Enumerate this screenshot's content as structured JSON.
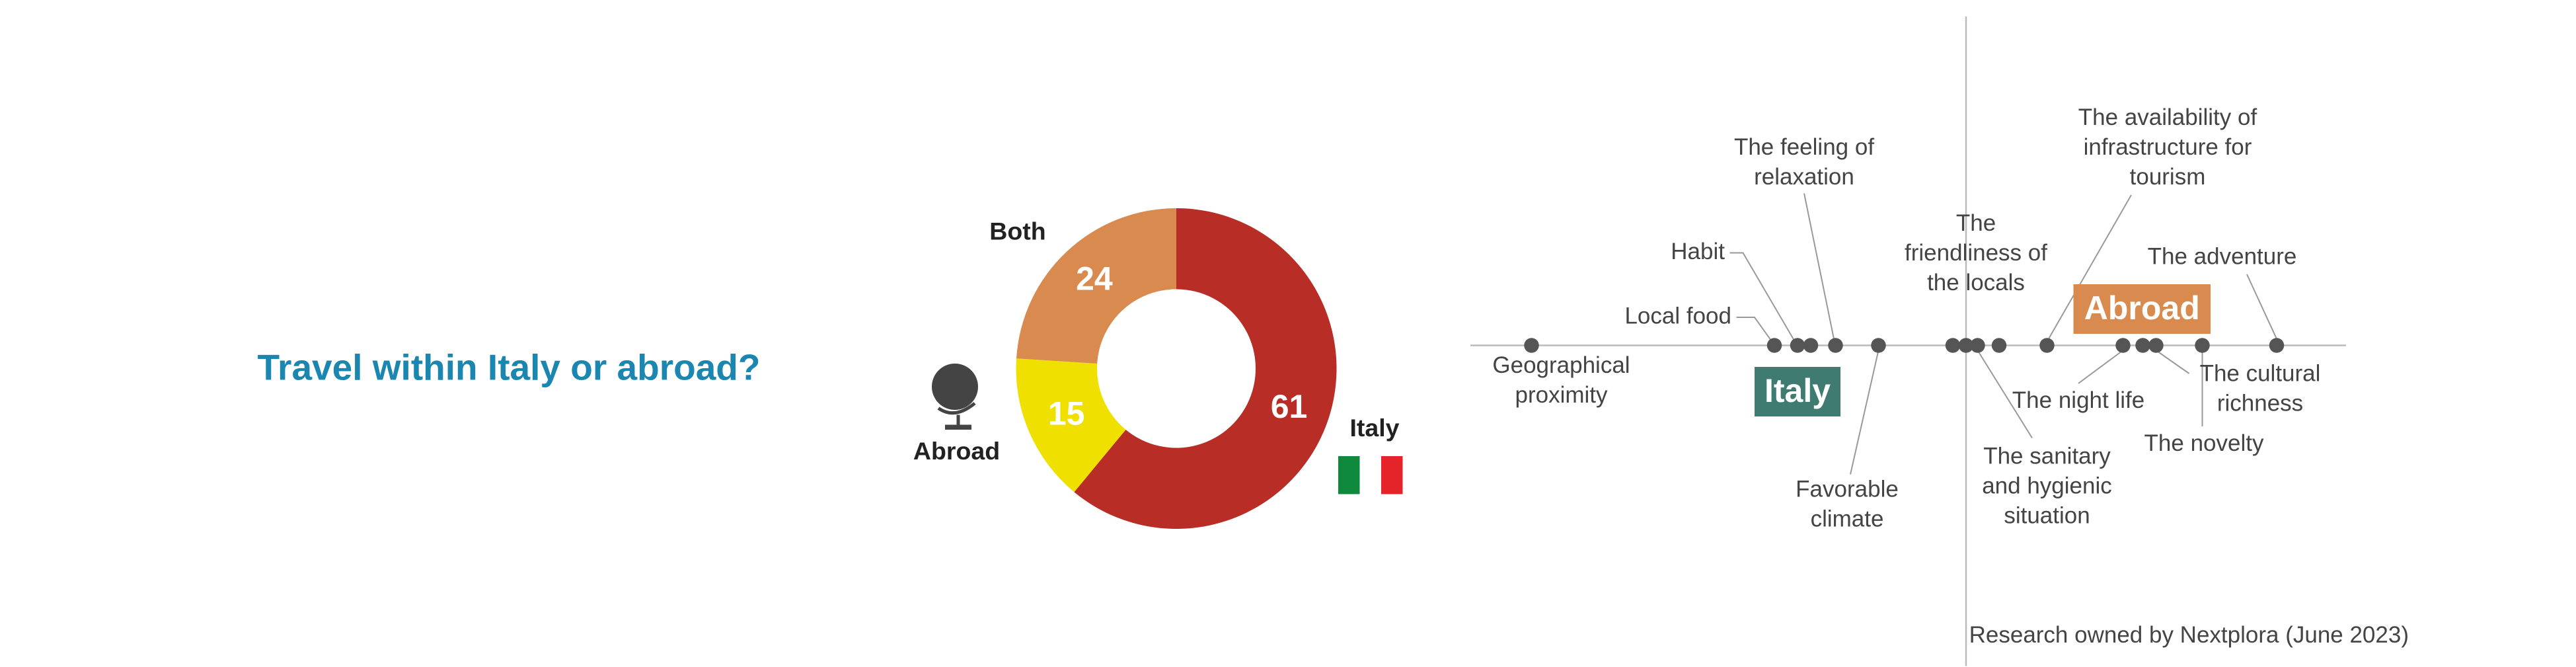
{
  "chart_data": [
    {
      "type": "donut",
      "title": "Travel within Italy or abroad?",
      "categories": [
        "Italy",
        "Abroad",
        "Both"
      ],
      "values": [
        61,
        15,
        24
      ],
      "colors": [
        "#b82e26",
        "#efe000",
        "#d98b4f"
      ]
    },
    {
      "type": "dotline",
      "pole_labels": [
        "Italy",
        "Abroad"
      ],
      "pole_colors": [
        "#3f7b71",
        "#d98b4f"
      ],
      "categories": [
        "Geographical\nproximity",
        "Local food",
        "Habit",
        null,
        "The feeling of\nrelaxation",
        "Favorable\nclimate",
        null,
        "The\nfriendliness of\nthe locals",
        "The sanitary\nand hygienic\nsituation",
        null,
        "The availability of\ninfrastructure for\ntourism",
        "The night life",
        null,
        "The cultural\nrichness",
        "The novelty",
        "The adventure"
      ],
      "x": [
        -26.3,
        -11.6,
        -10.2,
        -9.4,
        -7.9,
        -5.3,
        -0.8,
        0,
        0.7,
        2,
        4.9,
        9.5,
        10.7,
        11.5,
        14.3,
        18.8
      ],
      "xlim": [
        -30,
        23
      ],
      "color": "#555555",
      "source": "Research owned by Nextplora (June 2023)"
    }
  ]
}
